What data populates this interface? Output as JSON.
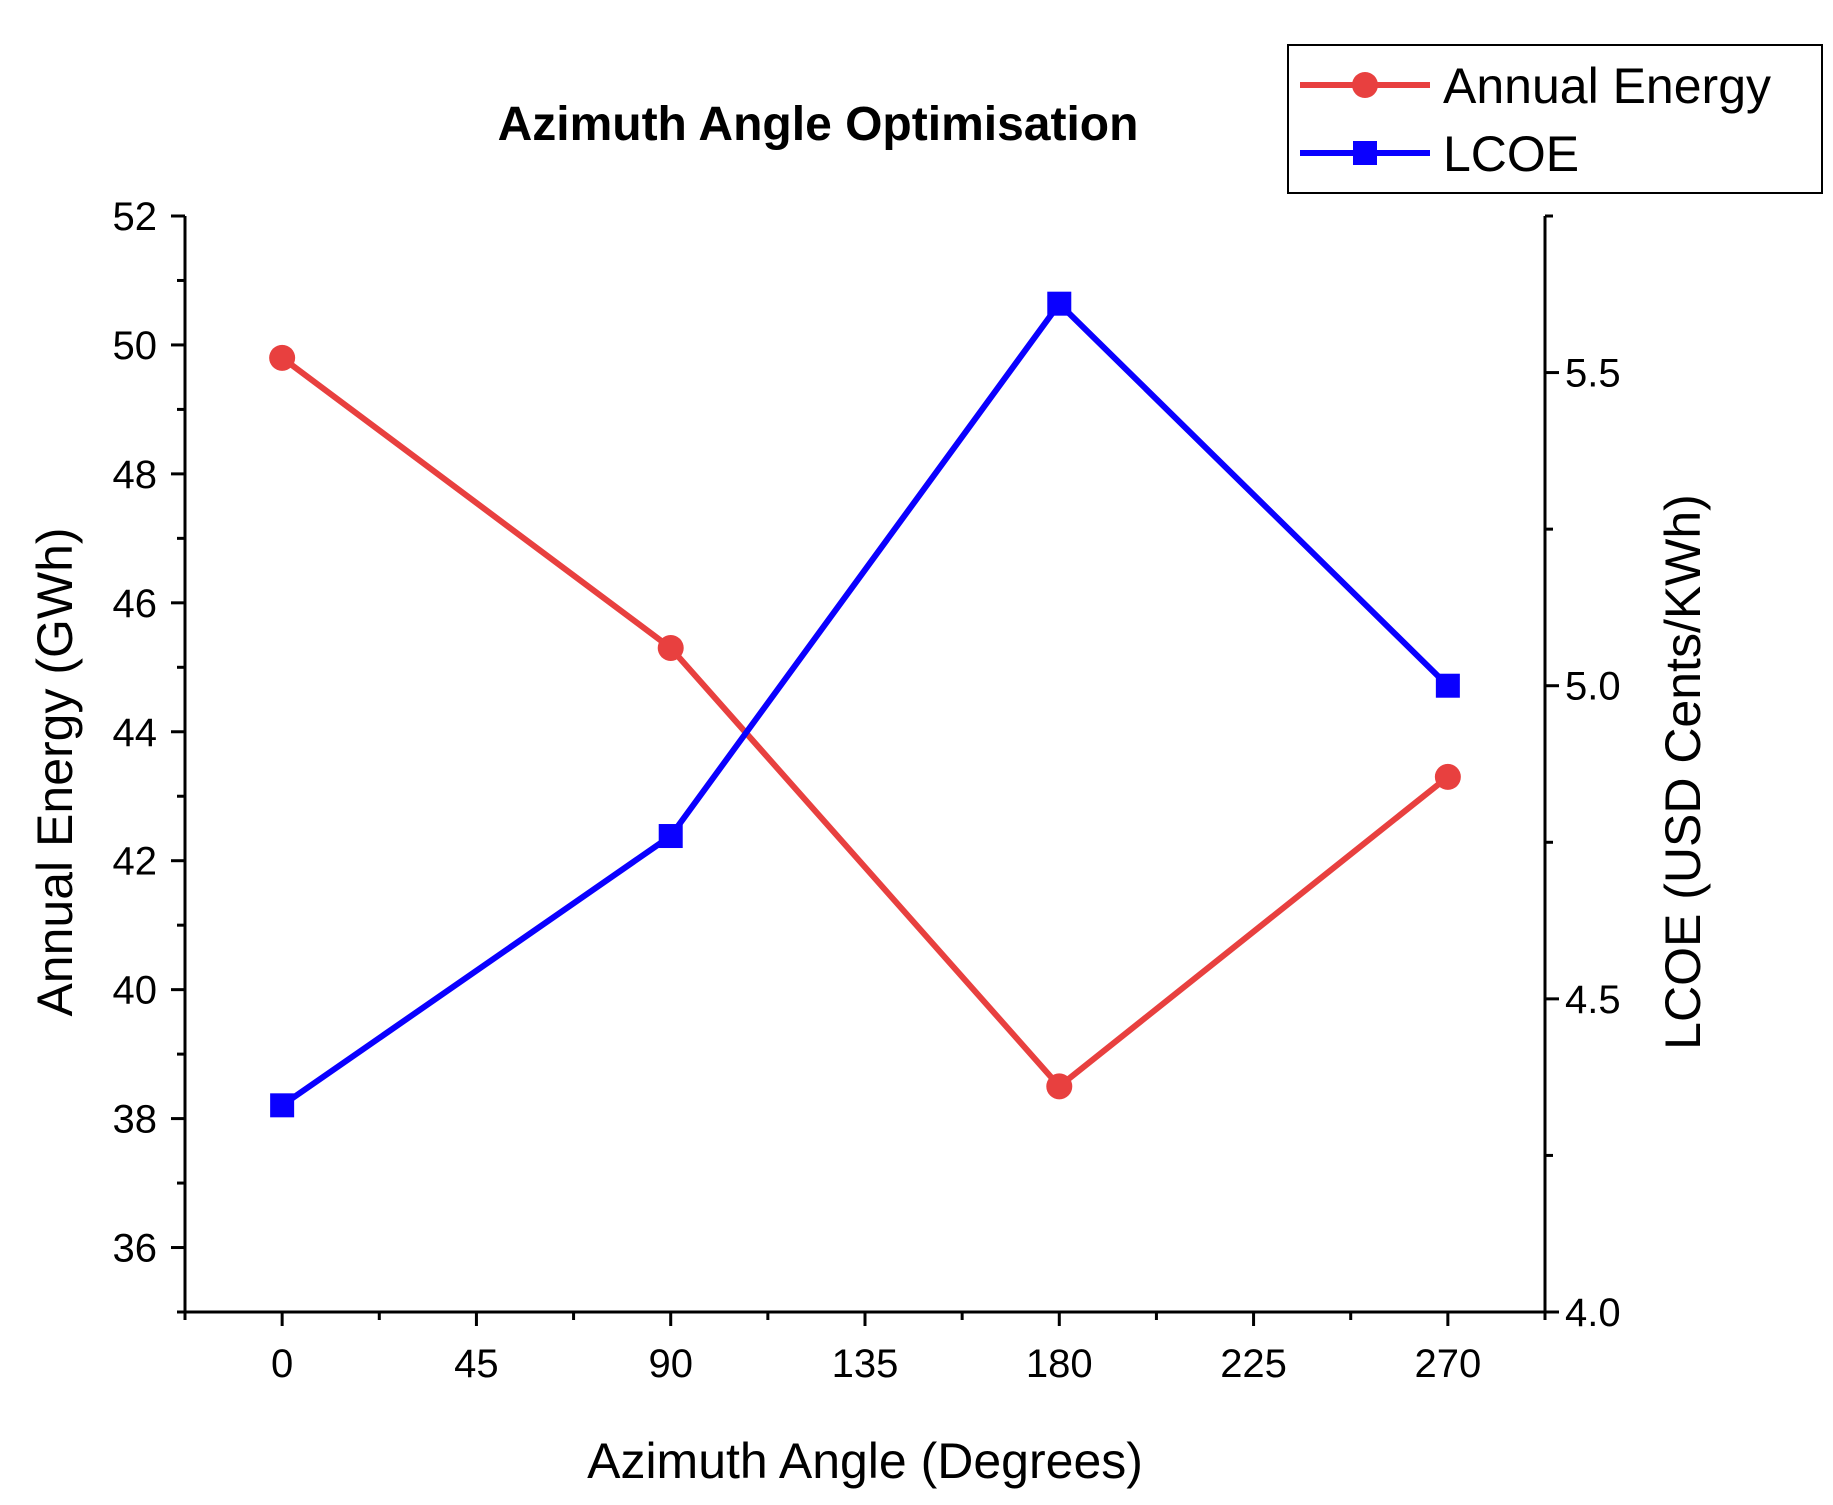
{
  "chart_data": {
    "type": "line",
    "title": "Azimuth Angle Optimisation",
    "xlabel": "Azimuth Angle (Degrees)",
    "ylabel": "Annual Energy (GWh)",
    "y2label": "LCOE (USD Cents/KWh)",
    "x": [
      0,
      90,
      180,
      270
    ],
    "xlim": [
      -22.5,
      292.5
    ],
    "xticks": [
      0,
      45,
      90,
      135,
      180,
      225,
      270
    ],
    "ylim": [
      35,
      52
    ],
    "yticks": [
      36,
      38,
      40,
      42,
      44,
      46,
      48,
      50,
      52
    ],
    "y2lim": [
      4.0,
      5.75
    ],
    "y2ticks": [
      4.0,
      4.5,
      5.0,
      5.5
    ],
    "y2ticks_labels": [
      "4.0",
      "4.5",
      "5.0",
      "5.5"
    ],
    "legend_position": "top-right",
    "series": [
      {
        "name": "Annual Energy",
        "axis": "left",
        "marker": "circle",
        "color": "#e8403f",
        "values": [
          49.8,
          45.3,
          38.5,
          43.3
        ]
      },
      {
        "name": "LCOE",
        "axis": "right",
        "marker": "square",
        "color": "#0a00ff",
        "values": [
          4.33,
          4.76,
          5.61,
          5.0
        ]
      }
    ]
  }
}
